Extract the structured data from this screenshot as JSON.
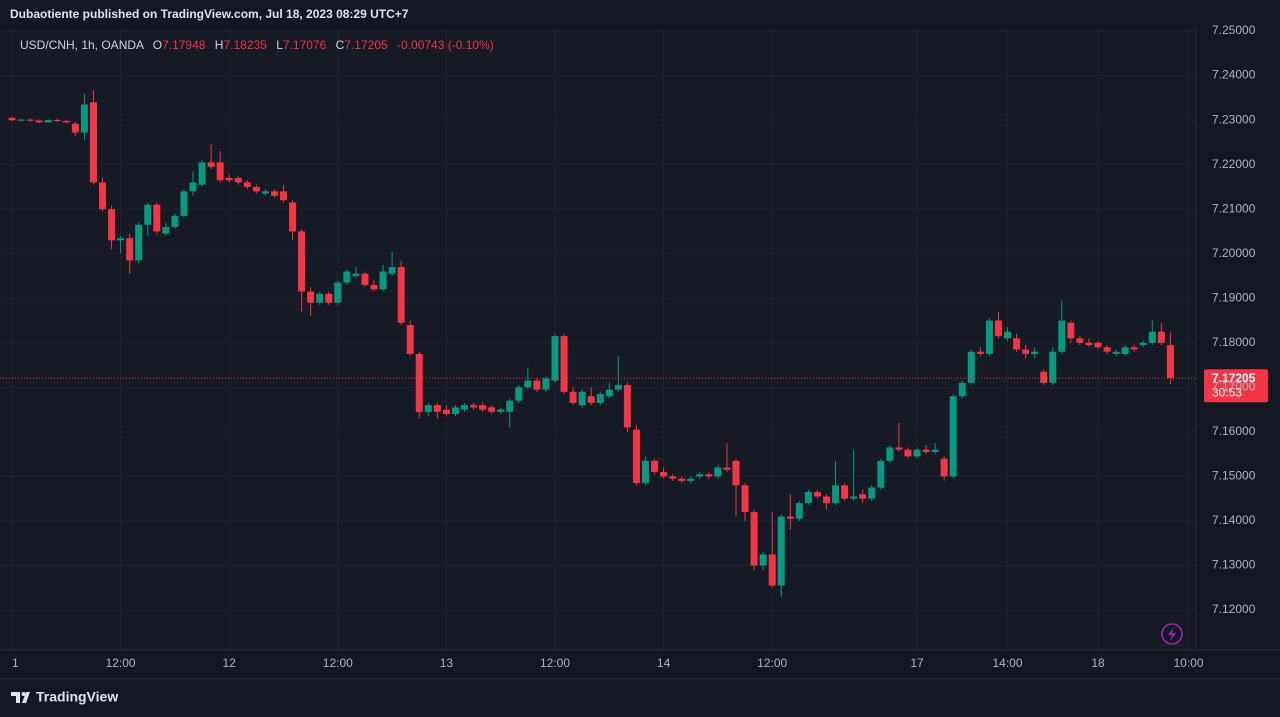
{
  "header": {
    "published": "Dubaotiente published on TradingView.com, Jul 18, 2023 08:29 UTC+7"
  },
  "chart_data": {
    "type": "candlestick",
    "symbol": "USD/CNH, 1h, OANDA",
    "legend_labels": {
      "open": "O",
      "high": "H",
      "low": "L",
      "close": "C"
    },
    "change": "-0.00743 (-0.10%)",
    "countdown": "30:53",
    "up_color": "#089981",
    "down_color": "#f23645",
    "grid": true,
    "ylim": [
      7.11103,
      7.25045
    ],
    "yticks": [
      {
        "value": 7.12,
        "label": "7.12000"
      },
      {
        "value": 7.13,
        "label": "7.13000"
      },
      {
        "value": 7.14,
        "label": "7.14000"
      },
      {
        "value": 7.15,
        "label": "7.15000"
      },
      {
        "value": 7.16,
        "label": "7.16000"
      },
      {
        "value": 7.17,
        "label": "7.17000"
      },
      {
        "value": 7.18,
        "label": "7.18000"
      },
      {
        "value": 7.19,
        "label": "7.19000"
      },
      {
        "value": 7.2,
        "label": "7.20000"
      },
      {
        "value": 7.21,
        "label": "7.21000"
      },
      {
        "value": 7.22,
        "label": "7.22000"
      },
      {
        "value": 7.23,
        "label": "7.23000"
      },
      {
        "value": 7.24,
        "label": "7.24000"
      },
      {
        "value": 7.25,
        "label": "7.25000"
      }
    ],
    "categories": [
      "1",
      null,
      null,
      null,
      null,
      null,
      null,
      null,
      null,
      null,
      null,
      null,
      "12:00",
      null,
      null,
      null,
      null,
      null,
      null,
      null,
      null,
      null,
      null,
      null,
      "12",
      null,
      null,
      null,
      null,
      null,
      null,
      null,
      null,
      null,
      null,
      null,
      "12:00",
      null,
      null,
      null,
      null,
      null,
      null,
      null,
      null,
      null,
      null,
      null,
      "13",
      null,
      null,
      null,
      null,
      null,
      null,
      null,
      null,
      null,
      null,
      null,
      "12:00",
      null,
      null,
      null,
      null,
      null,
      null,
      null,
      null,
      null,
      null,
      null,
      "14",
      null,
      null,
      null,
      null,
      null,
      null,
      null,
      null,
      null,
      null,
      null,
      "12:00",
      null,
      null,
      null,
      null,
      null,
      null,
      null,
      null,
      null,
      null,
      null,
      null,
      null,
      null,
      null,
      "17",
      null,
      null,
      null,
      null,
      null,
      null,
      null,
      null,
      null,
      "14:00",
      null,
      null,
      null,
      null,
      null,
      null,
      null,
      null,
      null,
      "18",
      null,
      null,
      null,
      null,
      null,
      null,
      null,
      null,
      null,
      "10:00"
    ],
    "ohlc": [
      [
        7.2305,
        7.2308,
        7.2297,
        7.23
      ],
      [
        7.23,
        7.2303,
        7.2297,
        7.2301
      ],
      [
        7.2301,
        7.2304,
        7.2296,
        7.2299
      ],
      [
        7.2299,
        7.2302,
        7.2293,
        7.2295
      ],
      [
        7.2295,
        7.2302,
        7.2294,
        7.23
      ],
      [
        7.23,
        7.2303,
        7.2296,
        7.2298
      ],
      [
        7.2298,
        7.23,
        7.2292,
        7.2295
      ],
      [
        7.2292,
        7.2296,
        7.2265,
        7.2272
      ],
      [
        7.2272,
        7.236,
        7.2255,
        7.2335
      ],
      [
        7.234,
        7.2368,
        7.2155,
        7.216
      ],
      [
        7.216,
        7.217,
        7.2095,
        7.21
      ],
      [
        7.21,
        7.2108,
        7.201,
        7.203
      ],
      [
        7.203,
        7.204,
        7.2,
        7.2035
      ],
      [
        7.2035,
        7.2045,
        7.1955,
        7.1985
      ],
      [
        7.1985,
        7.207,
        7.1978,
        7.2065
      ],
      [
        7.2065,
        7.2115,
        7.204,
        7.211
      ],
      [
        7.211,
        7.2115,
        7.2045,
        7.205
      ],
      [
        7.2045,
        7.207,
        7.204,
        7.206
      ],
      [
        7.206,
        7.209,
        7.2055,
        7.2085
      ],
      [
        7.2085,
        7.2145,
        7.208,
        7.214
      ],
      [
        7.214,
        7.2185,
        7.213,
        7.216
      ],
      [
        7.2155,
        7.221,
        7.215,
        7.2205
      ],
      [
        7.2205,
        7.2245,
        7.219,
        7.2195
      ],
      [
        7.2205,
        7.223,
        7.216,
        7.2165
      ],
      [
        7.217,
        7.2178,
        7.216,
        7.2165
      ],
      [
        7.217,
        7.2175,
        7.2155,
        7.216
      ],
      [
        7.216,
        7.2165,
        7.2145,
        7.215
      ],
      [
        7.215,
        7.2155,
        7.2135,
        7.214
      ],
      [
        7.2135,
        7.2145,
        7.213,
        7.214
      ],
      [
        7.214,
        7.2145,
        7.2125,
        7.213
      ],
      [
        7.214,
        7.2155,
        7.2115,
        7.212
      ],
      [
        7.2115,
        7.212,
        7.203,
        7.205
      ],
      [
        7.205,
        7.2055,
        7.187,
        7.1915
      ],
      [
        7.1915,
        7.1925,
        7.186,
        7.189
      ],
      [
        7.189,
        7.1915,
        7.1885,
        7.191
      ],
      [
        7.191,
        7.1915,
        7.1885,
        7.189
      ],
      [
        7.189,
        7.194,
        7.1885,
        7.1935
      ],
      [
        7.1935,
        7.1965,
        7.193,
        7.196
      ],
      [
        7.195,
        7.197,
        7.1945,
        7.1955
      ],
      [
        7.1955,
        7.196,
        7.1925,
        7.193
      ],
      [
        7.193,
        7.194,
        7.1915,
        7.192
      ],
      [
        7.192,
        7.1975,
        7.1915,
        7.196
      ],
      [
        7.1955,
        7.2005,
        7.195,
        7.197
      ],
      [
        7.197,
        7.1985,
        7.184,
        7.1845
      ],
      [
        7.184,
        7.185,
        7.177,
        7.1775
      ],
      [
        7.1775,
        7.178,
        7.163,
        7.1645
      ],
      [
        7.1645,
        7.1665,
        7.1635,
        7.166
      ],
      [
        7.166,
        7.1665,
        7.163,
        7.1645
      ],
      [
        7.165,
        7.166,
        7.1635,
        7.164
      ],
      [
        7.164,
        7.166,
        7.1635,
        7.1655
      ],
      [
        7.165,
        7.1665,
        7.1645,
        7.166
      ],
      [
        7.166,
        7.1665,
        7.165,
        7.1655
      ],
      [
        7.166,
        7.1668,
        7.1645,
        7.165
      ],
      [
        7.1655,
        7.166,
        7.164,
        7.1645
      ],
      [
        7.1645,
        7.1655,
        7.164,
        7.165
      ],
      [
        7.1645,
        7.1675,
        7.161,
        7.167
      ],
      [
        7.167,
        7.1705,
        7.1665,
        7.17
      ],
      [
        7.17,
        7.1745,
        7.1695,
        7.1715
      ],
      [
        7.1715,
        7.172,
        7.169,
        7.1695
      ],
      [
        7.1695,
        7.1725,
        7.169,
        7.172
      ],
      [
        7.1715,
        7.182,
        7.171,
        7.1815
      ],
      [
        7.1815,
        7.182,
        7.1685,
        7.169
      ],
      [
        7.169,
        7.17,
        7.166,
        7.1665
      ],
      [
        7.166,
        7.1695,
        7.1655,
        7.169
      ],
      [
        7.168,
        7.17,
        7.166,
        7.1665
      ],
      [
        7.1665,
        7.169,
        7.166,
        7.1685
      ],
      [
        7.168,
        7.171,
        7.1675,
        7.1695
      ],
      [
        7.1695,
        7.177,
        7.169,
        7.1705
      ],
      [
        7.1705,
        7.171,
        7.16,
        7.161
      ],
      [
        7.1605,
        7.1615,
        7.148,
        7.1485
      ],
      [
        7.1485,
        7.1545,
        7.148,
        7.1535
      ],
      [
        7.1535,
        7.154,
        7.1505,
        7.151
      ],
      [
        7.151,
        7.152,
        7.1495,
        7.15
      ],
      [
        7.15,
        7.1505,
        7.149,
        7.1495
      ],
      [
        7.1495,
        7.15,
        7.1485,
        7.149
      ],
      [
        7.149,
        7.15,
        7.1485,
        7.1495
      ],
      [
        7.15,
        7.151,
        7.1495,
        7.1505
      ],
      [
        7.1505,
        7.151,
        7.1495,
        7.15
      ],
      [
        7.15,
        7.1525,
        7.1495,
        7.152
      ],
      [
        7.152,
        7.1575,
        7.151,
        7.1515
      ],
      [
        7.1535,
        7.154,
        7.141,
        7.148
      ],
      [
        7.148,
        7.1485,
        7.14,
        7.142
      ],
      [
        7.142,
        7.1425,
        7.129,
        7.13
      ],
      [
        7.13,
        7.133,
        7.129,
        7.1325
      ],
      [
        7.1325,
        7.142,
        7.125,
        7.1255
      ],
      [
        7.1255,
        7.1415,
        7.123,
        7.141
      ],
      [
        7.141,
        7.146,
        7.138,
        7.1405
      ],
      [
        7.1405,
        7.1445,
        7.14,
        7.144
      ],
      [
        7.144,
        7.147,
        7.1435,
        7.1465
      ],
      [
        7.1465,
        7.147,
        7.145,
        7.1455
      ],
      [
        7.1455,
        7.146,
        7.1425,
        7.144
      ],
      [
        7.144,
        7.1535,
        7.1435,
        7.148
      ],
      [
        7.148,
        7.1485,
        7.1445,
        7.145
      ],
      [
        7.145,
        7.156,
        7.1445,
        7.1455
      ],
      [
        7.146,
        7.147,
        7.144,
        7.145
      ],
      [
        7.145,
        7.148,
        7.1445,
        7.1475
      ],
      [
        7.1475,
        7.154,
        7.147,
        7.1535
      ],
      [
        7.1535,
        7.157,
        7.153,
        7.1565
      ],
      [
        7.1565,
        7.162,
        7.1555,
        7.156
      ],
      [
        7.156,
        7.1565,
        7.154,
        7.1545
      ],
      [
        7.1545,
        7.1565,
        7.154,
        7.156
      ],
      [
        7.156,
        7.157,
        7.155,
        7.1555
      ],
      [
        7.1555,
        7.1575,
        7.155,
        7.156
      ],
      [
        7.154,
        7.1545,
        7.149,
        7.15
      ],
      [
        7.15,
        7.1685,
        7.1495,
        7.168
      ],
      [
        7.168,
        7.1715,
        7.1675,
        7.171
      ],
      [
        7.171,
        7.1785,
        7.1705,
        7.178
      ],
      [
        7.178,
        7.179,
        7.177,
        7.1775
      ],
      [
        7.1775,
        7.1855,
        7.177,
        7.185
      ],
      [
        7.185,
        7.187,
        7.181,
        7.1815
      ],
      [
        7.181,
        7.1835,
        7.1805,
        7.1825
      ],
      [
        7.181,
        7.182,
        7.178,
        7.1785
      ],
      [
        7.1785,
        7.1795,
        7.1765,
        7.1775
      ],
      [
        7.1775,
        7.179,
        7.1765,
        7.178
      ],
      [
        7.1735,
        7.174,
        7.1705,
        7.171
      ],
      [
        7.171,
        7.179,
        7.1705,
        7.178
      ],
      [
        7.178,
        7.1895,
        7.1775,
        7.185
      ],
      [
        7.1845,
        7.185,
        7.18,
        7.181
      ],
      [
        7.181,
        7.1815,
        7.1795,
        7.18
      ],
      [
        7.18,
        7.181,
        7.179,
        7.1795
      ],
      [
        7.18,
        7.1805,
        7.1785,
        7.179
      ],
      [
        7.179,
        7.1795,
        7.1775,
        7.178
      ],
      [
        7.1775,
        7.1785,
        7.177,
        7.178
      ],
      [
        7.1775,
        7.1795,
        7.177,
        7.179
      ],
      [
        7.179,
        7.1795,
        7.178,
        7.1785
      ],
      [
        7.1795,
        7.1805,
        7.179,
        7.18
      ],
      [
        7.18,
        7.185,
        7.1795,
        7.1825
      ],
      [
        7.1825,
        7.1845,
        7.1795,
        7.18
      ],
      [
        7.17948,
        7.18235,
        7.17076,
        7.17205
      ],
      null,
      null
    ]
  },
  "footer": {
    "brand": "TradingView"
  }
}
